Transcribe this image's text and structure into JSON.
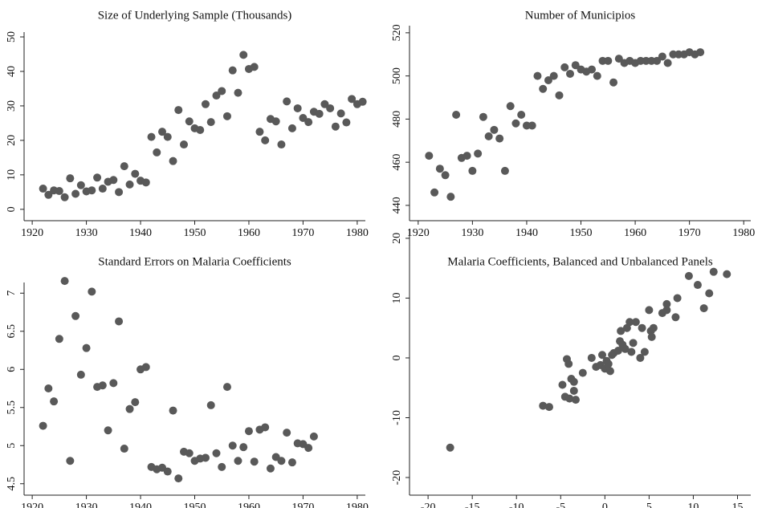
{
  "chart_data": [
    {
      "type": "scatter",
      "title": "Size of Underlying Sample (Thousands)",
      "color": "#595959",
      "x": [
        1922,
        1923,
        1924,
        1925,
        1926,
        1927,
        1928,
        1929,
        1930,
        1931,
        1932,
        1933,
        1934,
        1935,
        1936,
        1937,
        1938,
        1939,
        1940,
        1941,
        1942,
        1943,
        1944,
        1945,
        1946,
        1947,
        1948,
        1949,
        1950,
        1951,
        1952,
        1953,
        1954,
        1955,
        1956,
        1957,
        1958,
        1959,
        1960,
        1961,
        1962,
        1963,
        1964,
        1965,
        1966,
        1967,
        1968,
        1969,
        1970,
        1971,
        1972,
        1973,
        1974,
        1975,
        1976,
        1977,
        1978,
        1979,
        1980,
        1981
      ],
      "values": [
        6,
        4.2,
        5.5,
        5.3,
        3.5,
        9,
        4.5,
        7,
        5.2,
        5.5,
        9.2,
        6,
        8,
        8.5,
        5,
        12.5,
        7.2,
        10.3,
        8.3,
        7.8,
        21,
        16.5,
        22.5,
        21,
        14,
        28.8,
        18.8,
        25.5,
        23.5,
        23,
        30.5,
        25.3,
        33,
        34.3,
        27,
        40.3,
        33.8,
        44.8,
        40.7,
        41.3,
        22.5,
        20,
        26.2,
        25.5,
        18.8,
        31.3,
        23.5,
        29.3,
        26.5,
        25.3,
        28.3,
        27.7,
        30.5,
        29.3,
        24,
        27.8,
        25.2,
        32,
        30.5,
        31.2
      ],
      "xlim": [
        1918.5,
        1981.5
      ],
      "ylim": [
        -3.3,
        51.4
      ],
      "xticks": [
        1920,
        1930,
        1940,
        1950,
        1960,
        1970,
        1980
      ],
      "yticks": [
        0,
        10,
        20,
        30,
        40,
        50
      ]
    },
    {
      "type": "scatter",
      "title": "Number of Municipios",
      "color": "#595959",
      "x": [
        1922,
        1923,
        1924,
        1925,
        1926,
        1927,
        1928,
        1929,
        1930,
        1931,
        1932,
        1933,
        1934,
        1935,
        1936,
        1937,
        1938,
        1939,
        1940,
        1941,
        1942,
        1943,
        1944,
        1945,
        1946,
        1947,
        1948,
        1949,
        1950,
        1951,
        1952,
        1953,
        1954,
        1955,
        1956,
        1957,
        1958,
        1959,
        1960,
        1961,
        1962,
        1963,
        1964,
        1965,
        1966,
        1967,
        1968,
        1969,
        1970,
        1971,
        1972
      ],
      "values": [
        463,
        446,
        457,
        454,
        444,
        482,
        462,
        463,
        456,
        464,
        481,
        472,
        475,
        471,
        456,
        486,
        478,
        482,
        477,
        477,
        500,
        494,
        498,
        500,
        491,
        504,
        501,
        505,
        503,
        502,
        503,
        500,
        507,
        507,
        497,
        508,
        506,
        507,
        506,
        507,
        507,
        507,
        507,
        509,
        506,
        510,
        510,
        510,
        511,
        510,
        511
      ],
      "xlim": [
        1918.4,
        1981.3
      ],
      "ylim": [
        432.9,
        523.3
      ],
      "xticks": [
        1920,
        1930,
        1940,
        1950,
        1960,
        1970,
        1980
      ],
      "yticks": [
        440,
        460,
        480,
        500,
        520
      ]
    },
    {
      "type": "scatter",
      "title": "Standard Errors on Malaria Coefficients",
      "color": "#595959",
      "x": [
        1922,
        1923,
        1924,
        1925,
        1926,
        1927,
        1928,
        1929,
        1930,
        1931,
        1932,
        1933,
        1934,
        1935,
        1936,
        1937,
        1938,
        1939,
        1940,
        1941,
        1942,
        1943,
        1944,
        1945,
        1946,
        1947,
        1948,
        1949,
        1950,
        1951,
        1952,
        1953,
        1954,
        1955,
        1956,
        1957,
        1958,
        1959,
        1960,
        1961,
        1962,
        1963,
        1964,
        1965,
        1966,
        1967,
        1968,
        1969,
        1970,
        1971,
        1972
      ],
      "values": [
        5.26,
        5.75,
        5.58,
        6.4,
        7.16,
        4.8,
        6.7,
        5.93,
        6.28,
        7.02,
        5.77,
        5.79,
        5.2,
        5.82,
        6.63,
        4.96,
        5.48,
        5.57,
        6.0,
        6.03,
        4.72,
        4.69,
        4.71,
        4.66,
        5.46,
        4.57,
        4.92,
        4.9,
        4.8,
        4.83,
        4.84,
        5.53,
        4.9,
        4.72,
        5.77,
        5.0,
        4.8,
        4.98,
        5.19,
        4.79,
        5.21,
        5.24,
        4.7,
        4.85,
        4.8,
        5.17,
        4.78,
        5.03,
        5.02,
        4.97,
        5.12
      ],
      "xlim": [
        1918.5,
        1981.5
      ],
      "ylim": [
        4.35,
        7.14
      ],
      "xticks": [
        1920,
        1930,
        1940,
        1950,
        1960,
        1970,
        1980
      ],
      "yticks": [
        4.5,
        5,
        5.5,
        6,
        6.5,
        7
      ]
    },
    {
      "type": "scatter",
      "title": "Malaria Coefficients, Balanced and Unbalanced Panels",
      "color": "#595959",
      "x": [
        -17.5,
        -7,
        -6.3,
        -4.8,
        -4.5,
        -4.3,
        -4.1,
        -4,
        -3.8,
        -3.5,
        -3.3,
        -3.5,
        -2.5,
        -1.5,
        -1,
        -0.5,
        -0.3,
        0,
        0.2,
        0.4,
        0.6,
        0.8,
        1,
        1.5,
        1.7,
        1.8,
        2,
        2.3,
        2.5,
        2.8,
        3,
        3.2,
        3.5,
        4,
        4.2,
        4.5,
        5,
        5.2,
        5.3,
        5.5,
        6.5,
        7,
        7,
        8,
        8.2,
        9.5,
        10.5,
        11.2,
        11.8,
        12.3,
        13.8
      ],
      "values": [
        -15,
        -8,
        -8.2,
        -4.5,
        -6.5,
        -0.2,
        -1,
        -6.8,
        -3.5,
        -5.5,
        -7,
        -4,
        -2.5,
        0,
        -1.5,
        -1.2,
        0.5,
        -1.8,
        -0.5,
        -1,
        -2.2,
        0.5,
        0.8,
        1.2,
        2.8,
        4.5,
        2.2,
        1.5,
        5,
        6,
        1,
        2.5,
        6,
        0,
        5,
        1,
        8,
        4.5,
        3.5,
        5,
        7.5,
        9,
        8,
        6.8,
        10,
        13.7,
        12.2,
        8.3,
        10.8,
        14.4,
        14
      ],
      "xlim": [
        -22.1,
        16.5
      ],
      "ylim": [
        -22.95,
        21.6
      ],
      "xticks": [
        -20,
        -15,
        -10,
        -5,
        0,
        5,
        10,
        15
      ],
      "yticks": [
        -20,
        -10,
        0,
        10,
        20
      ]
    }
  ]
}
